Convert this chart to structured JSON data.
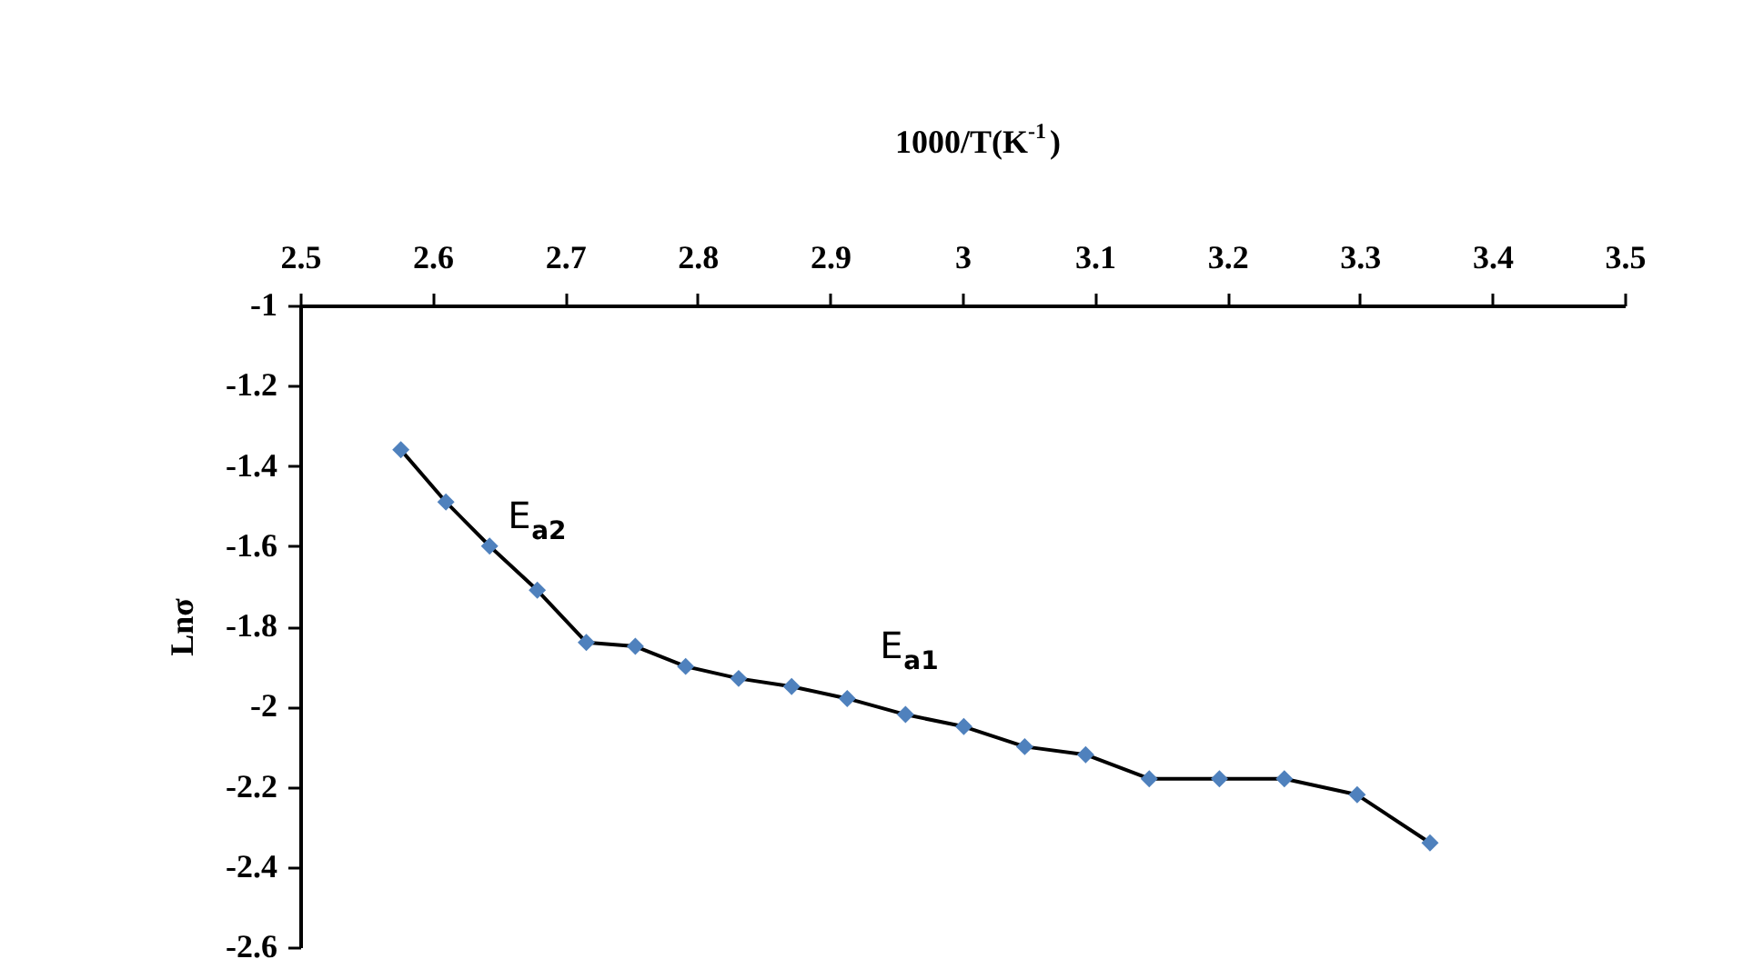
{
  "chart_data": {
    "type": "line",
    "xlabel": "1000/T(K$^{-1}$)",
    "ylabel": "Lnσ",
    "x": [
      2.576,
      2.61,
      2.643,
      2.679,
      2.716,
      2.753,
      2.791,
      2.831,
      2.871,
      2.913,
      2.957,
      3.001,
      3.047,
      3.093,
      3.141,
      3.194,
      3.243,
      3.298,
      3.353
    ],
    "series": [
      {
        "color": "#4f81bd",
        "values": [
          -1.36,
          -1.49,
          -1.6,
          -1.71,
          -1.84,
          -1.85,
          -1.9,
          -1.93,
          -1.95,
          -1.98,
          -2.02,
          -2.05,
          -2.1,
          -2.12,
          -2.18,
          -2.18,
          -2.18,
          -2.22,
          -2.34
        ]
      }
    ],
    "xlim": [
      2.5,
      3.5
    ],
    "xticks": [
      2.5,
      2.6,
      2.7,
      2.8,
      2.9,
      3,
      3.1,
      3.2,
      3.3,
      3.4,
      3.5
    ],
    "ylim": [
      -2.6,
      -1
    ],
    "yticks": [
      -2.6,
      -2.4,
      -2.2,
      -2,
      -1.8,
      -1.6,
      -1.4,
      -1.2,
      -1
    ],
    "marker": "diamond",
    "grid": false,
    "annotations": [
      {
        "text": "E$_{a2}$",
        "x": 2.643,
        "y": -1.6
      },
      {
        "text": "E$_{a1}$",
        "x": 2.913,
        "y": -1.98
      }
    ]
  }
}
